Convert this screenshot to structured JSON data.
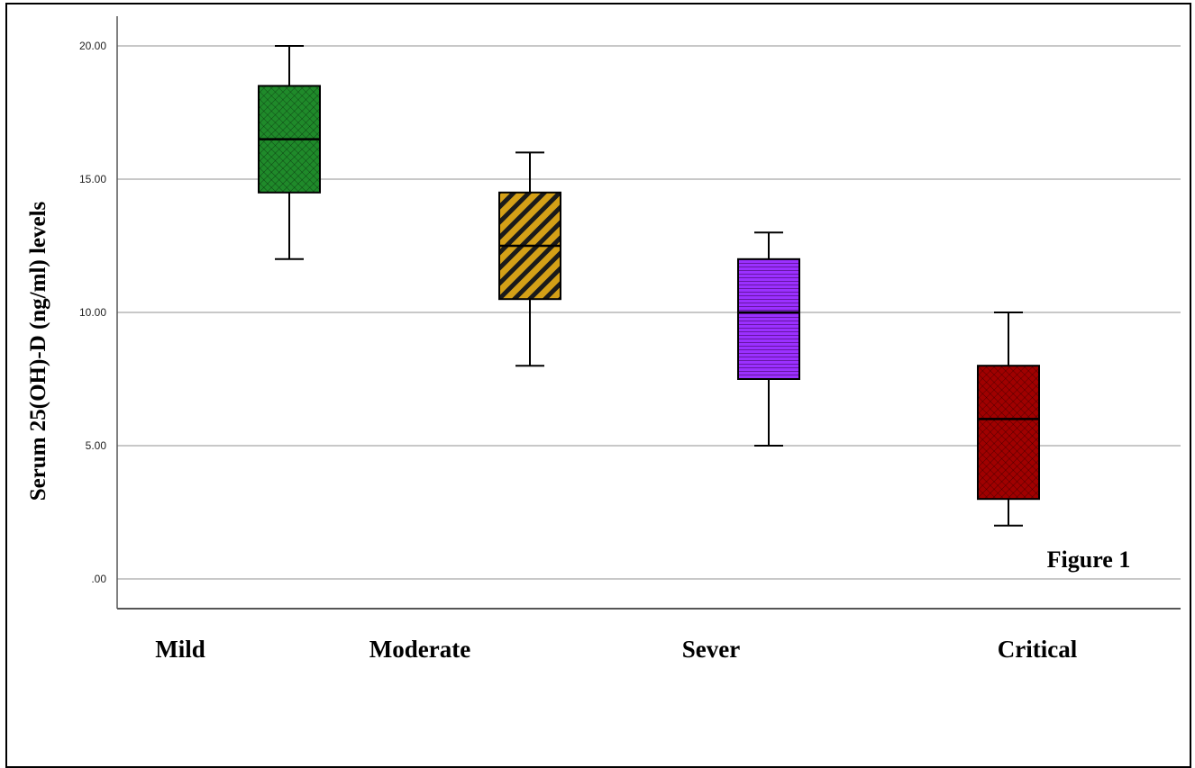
{
  "chart_data": {
    "type": "box",
    "ylabel": "Serum 25(OH)-D (ng/ml) levels",
    "xlabel": "",
    "annotation": "Figure 1",
    "ylim": [
      -1,
      21
    ],
    "yticks": [
      0,
      5,
      10,
      15,
      20
    ],
    "ytick_labels": [
      ".00",
      "5.00",
      "10.00",
      "15.00",
      "20.00"
    ],
    "grid": "horizontal",
    "categories": [
      "Mild",
      "Moderate",
      "Sever",
      "Critical"
    ],
    "boxes": [
      {
        "category": "Mild",
        "min": 12,
        "q1": 14.5,
        "median": 16.5,
        "q3": 18.5,
        "max": 20,
        "color": "#1f8a2a",
        "pattern": "crosshatch"
      },
      {
        "category": "Moderate",
        "min": 8,
        "q1": 10.5,
        "median": 12.5,
        "q3": 14.5,
        "max": 16,
        "color": "#d4a017",
        "pattern": "diagonal"
      },
      {
        "category": "Sever",
        "min": 5,
        "q1": 7.5,
        "median": 10,
        "q3": 12,
        "max": 13,
        "color": "#9b30ff",
        "pattern": "horizontal"
      },
      {
        "category": "Critical",
        "min": 2,
        "q1": 3,
        "median": 6,
        "q3": 8,
        "max": 10,
        "color": "#a00000",
        "pattern": "crosshatch"
      }
    ]
  }
}
